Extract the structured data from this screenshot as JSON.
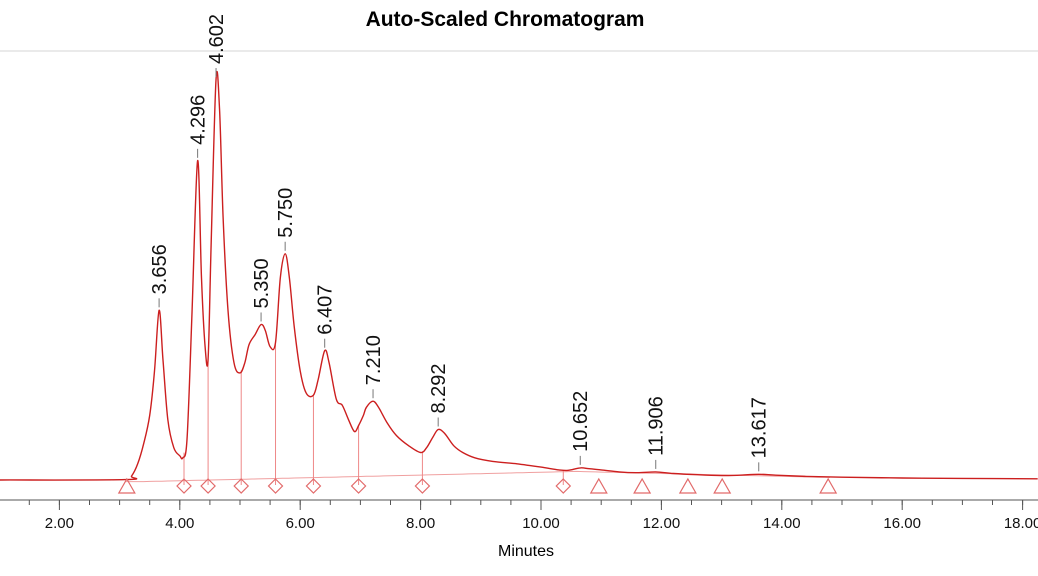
{
  "chart_data": {
    "type": "line",
    "title": "Auto-Scaled Chromatogram",
    "xlabel": "Minutes",
    "ylabel": "",
    "xlim": [
      1.0,
      18.25
    ],
    "grid": false,
    "line_color": "#cc1f1f",
    "marker_color": "#e26a6a",
    "x_ticks": [
      {
        "value": 2.0,
        "label": "2.00"
      },
      {
        "value": 4.0,
        "label": "4.00"
      },
      {
        "value": 6.0,
        "label": "6.00"
      },
      {
        "value": 8.0,
        "label": "8.00"
      },
      {
        "value": 10.0,
        "label": "10.00"
      },
      {
        "value": 12.0,
        "label": "12.00"
      },
      {
        "value": 14.0,
        "label": "14.00"
      },
      {
        "value": 16.0,
        "label": "16.00"
      },
      {
        "value": 18.0,
        "label": "18.00"
      }
    ],
    "peaks": [
      {
        "rt": 3.656,
        "label": "3.656"
      },
      {
        "rt": 4.296,
        "label": "4.296"
      },
      {
        "rt": 4.602,
        "label": "4.602"
      },
      {
        "rt": 5.35,
        "label": "5.350"
      },
      {
        "rt": 5.75,
        "label": "5.750"
      },
      {
        "rt": 6.407,
        "label": "6.407"
      },
      {
        "rt": 7.21,
        "label": "7.210"
      },
      {
        "rt": 8.292,
        "label": "8.292"
      },
      {
        "rt": 10.652,
        "label": "10.652"
      },
      {
        "rt": 11.906,
        "label": "11.906"
      },
      {
        "rt": 13.617,
        "label": "13.617"
      }
    ],
    "diamond_markers_x": [
      4.07,
      4.47,
      5.02,
      5.59,
      6.22,
      6.97,
      8.03,
      10.37
    ],
    "triangle_markers_x": [
      3.12,
      10.96,
      11.68,
      12.44,
      13.01,
      14.77
    ],
    "signal": [
      [
        1.0,
        0.0
      ],
      [
        3.1,
        0.001
      ],
      [
        3.2,
        0.01
      ],
      [
        3.3,
        0.04
      ],
      [
        3.4,
        0.09
      ],
      [
        3.5,
        0.16
      ],
      [
        3.58,
        0.27
      ],
      [
        3.656,
        0.42
      ],
      [
        3.72,
        0.3
      ],
      [
        3.8,
        0.15
      ],
      [
        3.9,
        0.08
      ],
      [
        4.0,
        0.06
      ],
      [
        4.05,
        0.055
      ],
      [
        4.12,
        0.1
      ],
      [
        4.2,
        0.4
      ],
      [
        4.296,
        0.79
      ],
      [
        4.36,
        0.5
      ],
      [
        4.42,
        0.33
      ],
      [
        4.47,
        0.3
      ],
      [
        4.52,
        0.58
      ],
      [
        4.602,
        0.99
      ],
      [
        4.66,
        0.92
      ],
      [
        4.72,
        0.65
      ],
      [
        4.8,
        0.42
      ],
      [
        4.9,
        0.29
      ],
      [
        5.0,
        0.265
      ],
      [
        5.08,
        0.29
      ],
      [
        5.15,
        0.335
      ],
      [
        5.25,
        0.36
      ],
      [
        5.35,
        0.385
      ],
      [
        5.42,
        0.37
      ],
      [
        5.5,
        0.33
      ],
      [
        5.59,
        0.34
      ],
      [
        5.67,
        0.5
      ],
      [
        5.75,
        0.56
      ],
      [
        5.82,
        0.5
      ],
      [
        5.9,
        0.38
      ],
      [
        6.0,
        0.27
      ],
      [
        6.1,
        0.215
      ],
      [
        6.22,
        0.21
      ],
      [
        6.3,
        0.25
      ],
      [
        6.407,
        0.32
      ],
      [
        6.48,
        0.29
      ],
      [
        6.6,
        0.2
      ],
      [
        6.7,
        0.185
      ],
      [
        6.8,
        0.15
      ],
      [
        6.9,
        0.12
      ],
      [
        6.97,
        0.135
      ],
      [
        7.05,
        0.16
      ],
      [
        7.1,
        0.18
      ],
      [
        7.21,
        0.195
      ],
      [
        7.3,
        0.18
      ],
      [
        7.45,
        0.14
      ],
      [
        7.6,
        0.11
      ],
      [
        7.8,
        0.085
      ],
      [
        8.0,
        0.068
      ],
      [
        8.1,
        0.08
      ],
      [
        8.2,
        0.105
      ],
      [
        8.292,
        0.125
      ],
      [
        8.4,
        0.115
      ],
      [
        8.55,
        0.085
      ],
      [
        8.7,
        0.068
      ],
      [
        8.9,
        0.055
      ],
      [
        9.2,
        0.046
      ],
      [
        9.6,
        0.04
      ],
      [
        10.0,
        0.032
      ],
      [
        10.3,
        0.025
      ],
      [
        10.45,
        0.024
      ],
      [
        10.652,
        0.03
      ],
      [
        10.8,
        0.028
      ],
      [
        11.0,
        0.025
      ],
      [
        11.3,
        0.02
      ],
      [
        11.6,
        0.018
      ],
      [
        11.906,
        0.02
      ],
      [
        12.2,
        0.016
      ],
      [
        12.6,
        0.013
      ],
      [
        13.0,
        0.011
      ],
      [
        13.3,
        0.012
      ],
      [
        13.617,
        0.014
      ],
      [
        13.9,
        0.012
      ],
      [
        14.4,
        0.009
      ],
      [
        15.0,
        0.007
      ],
      [
        16.0,
        0.005
      ],
      [
        17.0,
        0.004
      ],
      [
        18.25,
        0.003
      ]
    ]
  }
}
